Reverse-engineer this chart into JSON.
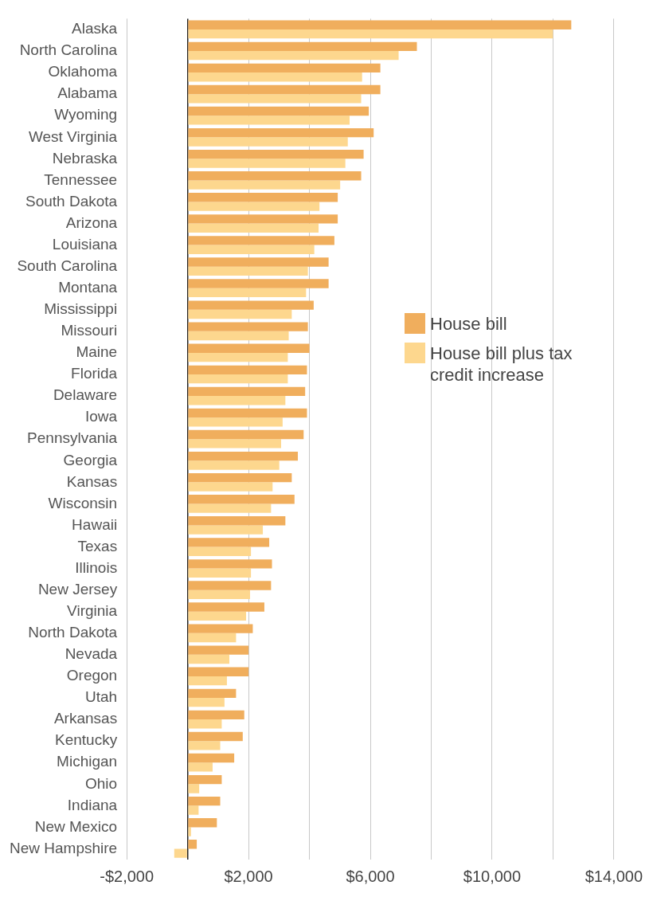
{
  "chart_data": {
    "type": "bar",
    "orientation": "horizontal",
    "categories": [
      "Alaska",
      "North Carolina",
      "Oklahoma",
      "Alabama",
      "Wyoming",
      "West Virginia",
      "Nebraska",
      "Tennessee",
      "South Dakota",
      "Arizona",
      "Louisiana",
      "South Carolina",
      "Montana",
      "Mississippi",
      "Missouri",
      "Maine",
      "Florida",
      "Delaware",
      "Iowa",
      "Pennsylvania",
      "Georgia",
      "Kansas",
      "Wisconsin",
      "Hawaii",
      "Texas",
      "Illinois",
      "New Jersey",
      "Virginia",
      "North Dakota",
      "Nevada",
      "Oregon",
      "Utah",
      "Arkansas",
      "Kentucky",
      "Michigan",
      "Ohio",
      "Indiana",
      "New Mexico",
      "New Hampshire"
    ],
    "series": [
      {
        "name": "House bill",
        "color": "#f0ae5d",
        "values": [
          12600,
          7530,
          6330,
          6330,
          5950,
          6110,
          5780,
          5700,
          4930,
          4930,
          4820,
          4630,
          4630,
          4140,
          3950,
          4000,
          3920,
          3860,
          3920,
          3810,
          3620,
          3420,
          3510,
          3210,
          2680,
          2770,
          2740,
          2520,
          2140,
          2000,
          2000,
          1590,
          1860,
          1810,
          1530,
          1120,
          1070,
          960,
          300
        ]
      },
      {
        "name": "House bill plus tax credit increase",
        "color": "#fdd78e",
        "values": [
          12000,
          6930,
          5730,
          5700,
          5320,
          5260,
          5180,
          5010,
          4330,
          4300,
          4160,
          3950,
          3890,
          3420,
          3320,
          3290,
          3290,
          3210,
          3120,
          3070,
          3010,
          2790,
          2740,
          2470,
          2080,
          2080,
          2050,
          1920,
          1590,
          1370,
          1290,
          1210,
          1120,
          1070,
          820,
          380,
          360,
          110,
          -440
        ]
      }
    ],
    "xlim": [
      -2000,
      14000
    ],
    "xticks": [
      {
        "value": -2000,
        "label": "-$2,000"
      },
      {
        "value": 0,
        "label": null
      },
      {
        "value": 2000,
        "label": "$2,000"
      },
      {
        "value": 4000,
        "label": null
      },
      {
        "value": 6000,
        "label": "$6,000"
      },
      {
        "value": 8000,
        "label": null
      },
      {
        "value": 10000,
        "label": "$10,000"
      },
      {
        "value": 12000,
        "label": null
      },
      {
        "value": 14000,
        "label": "$14,000"
      }
    ],
    "grid": "x",
    "legend": "right"
  }
}
